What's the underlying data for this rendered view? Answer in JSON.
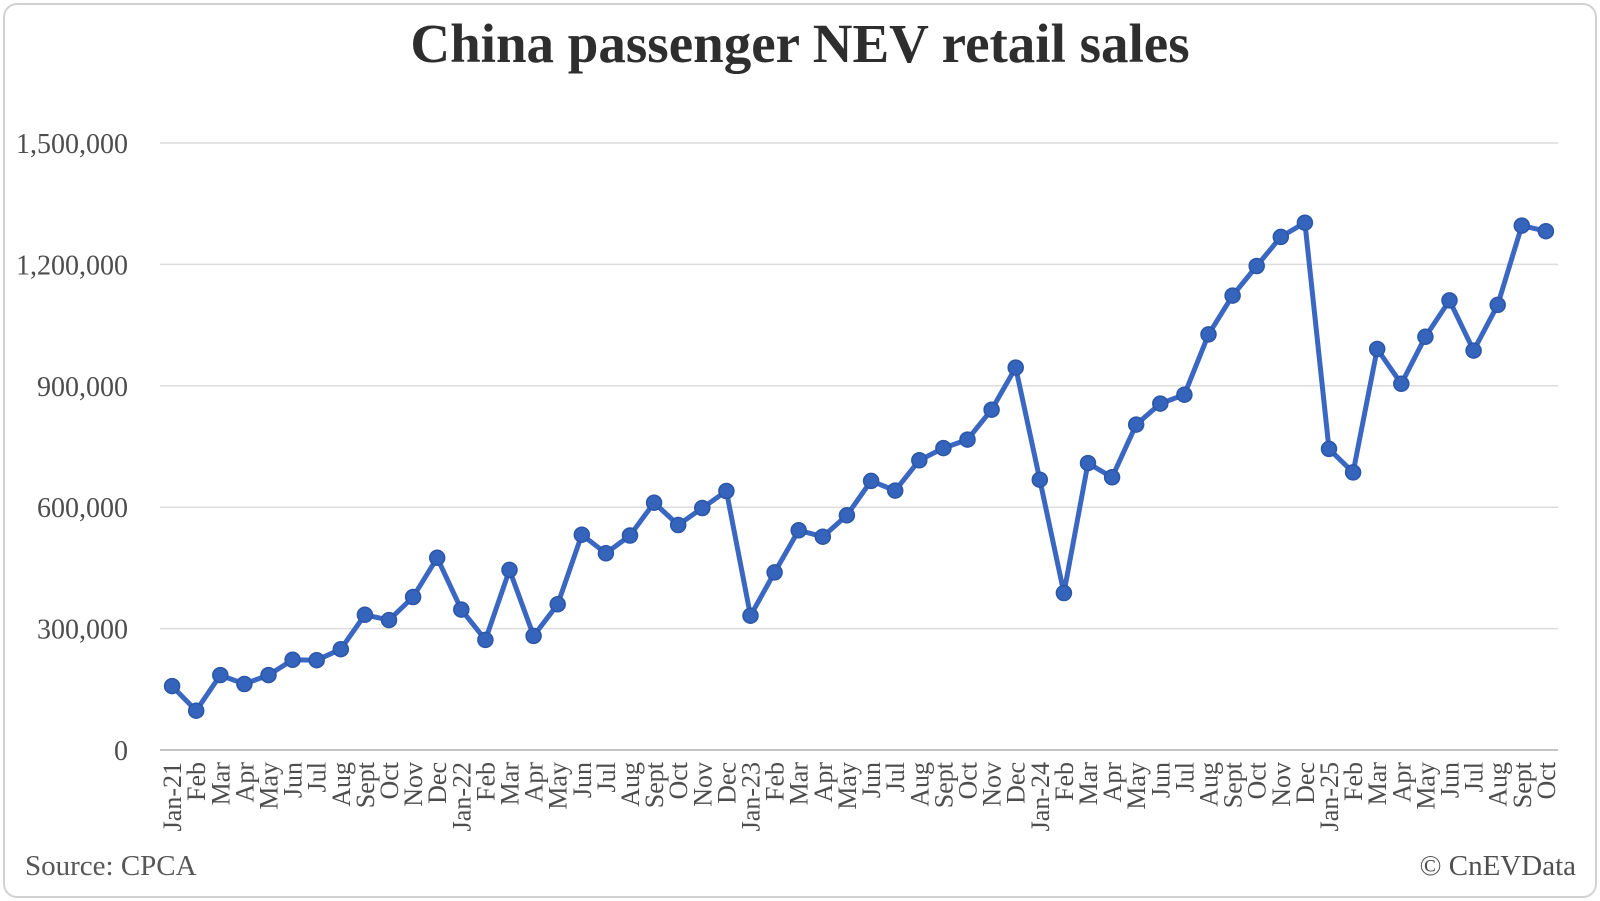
{
  "title": "China passenger NEV retail sales",
  "footer": {
    "source": "Source: CPCA",
    "copyright": "© CnEVData"
  },
  "colors": {
    "line": "#3a67c2",
    "marker_fill": "#3564bd",
    "marker_stroke": "#2c56a6",
    "gridline": "#dcdcdc",
    "axis_line": "#c4c4c4",
    "tick_text": "#4d4d4d",
    "title_text": "#2e2e2e",
    "footer_text": "#575757",
    "figure_border": "#d2d2d2"
  },
  "chart_data": {
    "type": "line",
    "title": "China passenger NEV retail sales",
    "xlabel": "",
    "ylabel": "",
    "ylim": [
      0,
      1500000
    ],
    "ytick_step": 300000,
    "grid": "horizontal-solid",
    "legend": "none",
    "marker": "circle",
    "yticks": [
      {
        "value": 0,
        "label": "0"
      },
      {
        "value": 300000,
        "label": "300,000"
      },
      {
        "value": 600000,
        "label": "600,000"
      },
      {
        "value": 900000,
        "label": "900,000"
      },
      {
        "value": 1200000,
        "label": "1,200,000"
      },
      {
        "value": 1500000,
        "label": "1,500,000"
      }
    ],
    "categories": [
      "Jan-21",
      "Feb",
      "Mar",
      "Apr",
      "May",
      "Jun",
      "Jul",
      "Aug",
      "Sept",
      "Oct",
      "Nov",
      "Dec",
      "Jan-22",
      "Feb",
      "Mar",
      "Apr",
      "May",
      "Jun",
      "Jul",
      "Aug",
      "Sept",
      "Oct",
      "Nov",
      "Dec",
      "Jan-23",
      "Feb",
      "Mar",
      "Apr",
      "May",
      "Jun",
      "Jul",
      "Aug",
      "Sept",
      "Oct",
      "Nov",
      "Dec",
      "Jan-24",
      "Feb",
      "Mar",
      "Apr",
      "May",
      "Jun",
      "Jul",
      "Aug",
      "Sept",
      "Oct",
      "Nov",
      "Dec",
      "Jan-25",
      "Feb",
      "Mar",
      "Apr",
      "May",
      "Jun",
      "Jul",
      "Aug",
      "Sept",
      "Oct"
    ],
    "values": [
      158000,
      97000,
      185000,
      163000,
      185000,
      223000,
      222000,
      249000,
      334000,
      321000,
      378000,
      475000,
      347000,
      272000,
      445000,
      282000,
      360000,
      532000,
      486000,
      530000,
      611000,
      556000,
      598000,
      640000,
      332000,
      439000,
      543000,
      527000,
      580000,
      665000,
      641000,
      716000,
      746000,
      767000,
      841000,
      945000,
      668000,
      388000,
      709000,
      674000,
      804000,
      856000,
      878000,
      1027000,
      1123000,
      1196000,
      1268000,
      1303000,
      744000,
      686000,
      991000,
      905000,
      1021000,
      1111000,
      987000,
      1100000,
      1296000,
      1282000
    ]
  }
}
